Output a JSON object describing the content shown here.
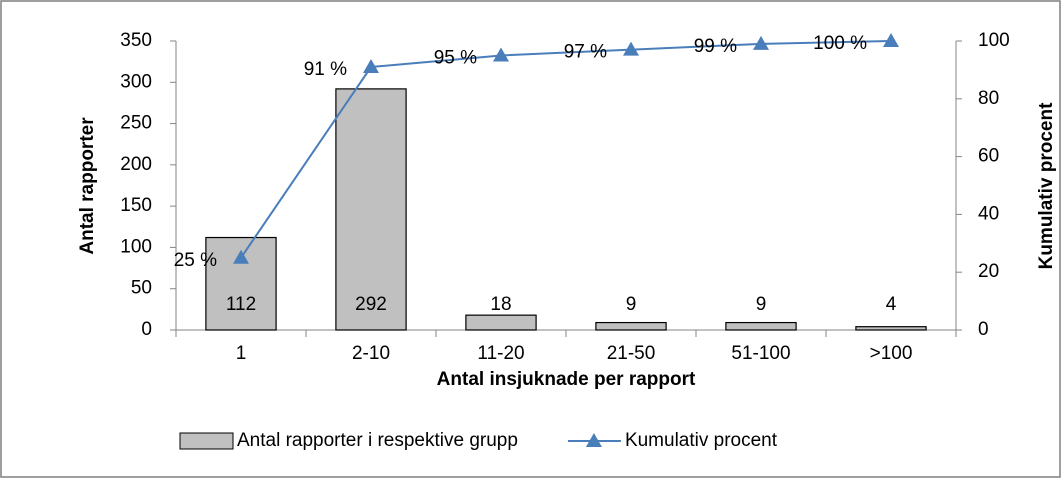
{
  "chart_data": {
    "type": "bar",
    "categories": [
      "1",
      "2-10",
      "11-20",
      "21-50",
      "51-100",
      ">100"
    ],
    "x_label": "Antal insjuknade per rapport",
    "y_label": "Antal rapporter",
    "y2_label": "Kumulativ procent",
    "ylim": [
      0,
      350
    ],
    "yticks": [
      0,
      50,
      100,
      150,
      200,
      250,
      300,
      350
    ],
    "y2lim": [
      0,
      100
    ],
    "y2ticks": [
      0,
      20,
      40,
      60,
      80,
      100
    ],
    "legend": "bottom",
    "series": [
      {
        "name": "Antal rapporter i respektive grupp",
        "type": "bar",
        "color": "#c0c0c0",
        "values": [
          112,
          292,
          18,
          9,
          9,
          4
        ]
      },
      {
        "name": "Kumulativ procent",
        "type": "line",
        "axis": "y2",
        "color": "#4a7ebb",
        "values": [
          25,
          91,
          95,
          97,
          99,
          100
        ],
        "value_labels": [
          "25 %",
          "91 %",
          "95 %",
          "97 %",
          "99 %",
          "100 %"
        ]
      }
    ]
  }
}
